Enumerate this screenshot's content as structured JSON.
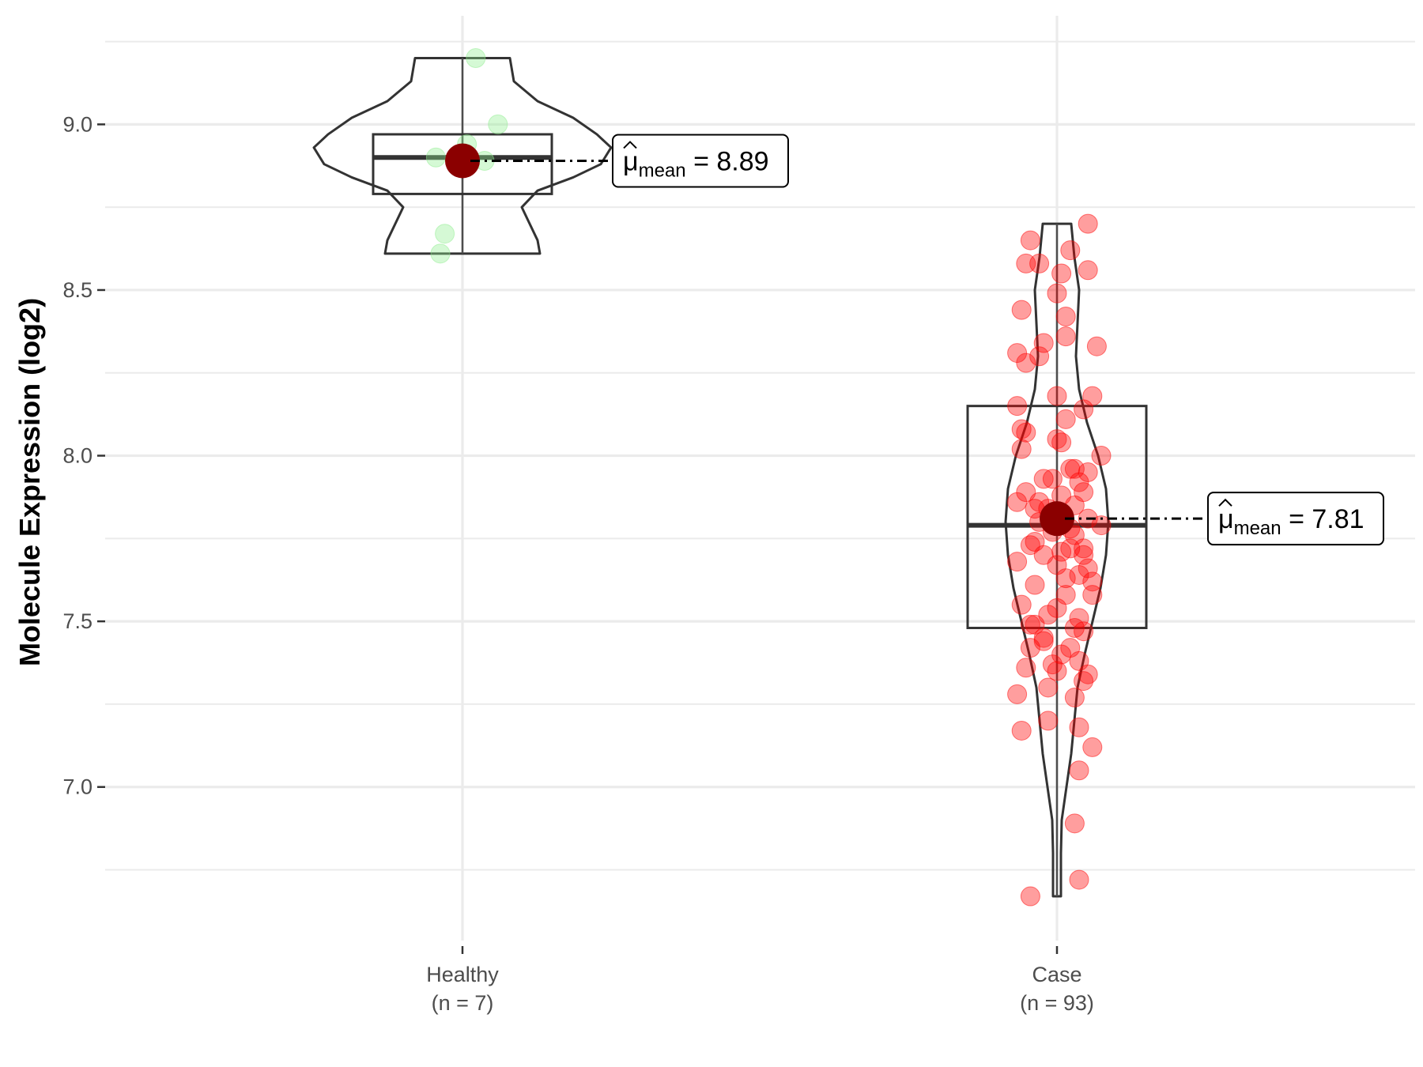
{
  "chart_data": {
    "type": "violin",
    "ylabel": "Molecule Expression (log2)",
    "xlabel": "",
    "ylim": [
      6.62,
      9.28
    ],
    "yticks": [
      7.0,
      7.5,
      8.0,
      8.5,
      9.0
    ],
    "ytick_labels": [
      "7.0",
      "7.5",
      "8.0",
      "8.5",
      "9.0"
    ],
    "grid": true,
    "legend": "none",
    "mean_symbol": "μ",
    "mean_subscript": "mean",
    "groups": [
      {
        "name": "Healthy",
        "n_label": "(n = 7)",
        "color": "#90EE90",
        "mean": 8.89,
        "mean_label": "8.89",
        "box": {
          "q1": 8.79,
          "median": 8.9,
          "q3": 8.97
        },
        "violin_range": [
          8.61,
          9.2
        ],
        "points": [
          [
            0.03,
            9.2
          ],
          [
            0.08,
            9.0
          ],
          [
            -0.06,
            8.9
          ],
          [
            0.05,
            8.89
          ],
          [
            0.01,
            8.94
          ],
          [
            -0.04,
            8.67
          ],
          [
            -0.05,
            8.61
          ]
        ]
      },
      {
        "name": "Case",
        "n_label": "(n = 93)",
        "color": "#FF0000",
        "mean": 7.81,
        "mean_label": "7.81",
        "box": {
          "q1": 7.48,
          "median": 7.79,
          "q3": 8.15
        },
        "violin_range": [
          6.67,
          8.7
        ],
        "points": [
          [
            0.07,
            8.7
          ],
          [
            -0.06,
            8.65
          ],
          [
            0.03,
            8.62
          ],
          [
            -0.04,
            8.58
          ],
          [
            -0.07,
            8.58
          ],
          [
            0.07,
            8.56
          ],
          [
            0.01,
            8.55
          ],
          [
            0.0,
            8.49
          ],
          [
            -0.08,
            8.44
          ],
          [
            0.02,
            8.42
          ],
          [
            -0.03,
            8.34
          ],
          [
            0.09,
            8.33
          ],
          [
            -0.09,
            8.31
          ],
          [
            -0.04,
            8.3
          ],
          [
            0.02,
            8.36
          ],
          [
            -0.07,
            8.28
          ],
          [
            0.0,
            8.18
          ],
          [
            0.08,
            8.18
          ],
          [
            -0.09,
            8.15
          ],
          [
            0.06,
            8.14
          ],
          [
            -0.08,
            8.08
          ],
          [
            0.0,
            8.05
          ],
          [
            0.01,
            8.04
          ],
          [
            -0.08,
            8.02
          ],
          [
            0.1,
            8.0
          ],
          [
            0.04,
            7.96
          ],
          [
            0.07,
            7.95
          ],
          [
            -0.01,
            7.93
          ],
          [
            -0.03,
            7.93
          ],
          [
            0.05,
            7.92
          ],
          [
            -0.07,
            7.89
          ],
          [
            0.01,
            7.88
          ],
          [
            -0.09,
            7.86
          ],
          [
            0.04,
            7.85
          ],
          [
            -0.05,
            7.84
          ],
          [
            0.07,
            7.81
          ],
          [
            0.1,
            7.79
          ],
          [
            0.03,
            7.78
          ],
          [
            -0.01,
            7.77
          ],
          [
            0.04,
            7.76
          ],
          [
            -0.05,
            7.74
          ],
          [
            -0.06,
            7.73
          ],
          [
            0.06,
            7.72
          ],
          [
            0.03,
            7.72
          ],
          [
            -0.03,
            7.7
          ],
          [
            -0.09,
            7.68
          ],
          [
            0.0,
            7.67
          ],
          [
            0.07,
            7.66
          ],
          [
            0.05,
            7.64
          ],
          [
            0.08,
            7.62
          ],
          [
            0.02,
            7.58
          ],
          [
            -0.08,
            7.55
          ],
          [
            0.0,
            7.54
          ],
          [
            -0.02,
            7.52
          ],
          [
            -0.06,
            7.49
          ],
          [
            0.04,
            7.48
          ],
          [
            0.06,
            7.47
          ],
          [
            -0.03,
            7.45
          ],
          [
            -0.06,
            7.42
          ],
          [
            0.03,
            7.42
          ],
          [
            0.01,
            7.4
          ],
          [
            0.05,
            7.38
          ],
          [
            -0.01,
            7.37
          ],
          [
            0.0,
            7.35
          ],
          [
            -0.07,
            7.36
          ],
          [
            0.07,
            7.34
          ],
          [
            0.06,
            7.32
          ],
          [
            -0.02,
            7.3
          ],
          [
            -0.09,
            7.28
          ],
          [
            0.04,
            7.27
          ],
          [
            -0.02,
            7.2
          ],
          [
            0.05,
            7.18
          ],
          [
            -0.08,
            7.17
          ],
          [
            0.08,
            7.12
          ],
          [
            0.05,
            7.05
          ],
          [
            0.04,
            6.89
          ],
          [
            0.05,
            6.72
          ],
          [
            -0.06,
            6.67
          ],
          [
            -0.05,
            7.49
          ],
          [
            0.02,
            7.63
          ],
          [
            0.03,
            7.96
          ],
          [
            -0.04,
            7.8
          ],
          [
            0.06,
            7.7
          ],
          [
            -0.02,
            7.84
          ],
          [
            0.01,
            7.71
          ],
          [
            -0.05,
            7.61
          ],
          [
            0.05,
            7.51
          ],
          [
            -0.04,
            7.86
          ],
          [
            0.08,
            7.58
          ],
          [
            -0.07,
            8.07
          ],
          [
            0.02,
            8.11
          ],
          [
            -0.03,
            7.44
          ],
          [
            0.06,
            7.89
          ]
        ]
      }
    ]
  }
}
